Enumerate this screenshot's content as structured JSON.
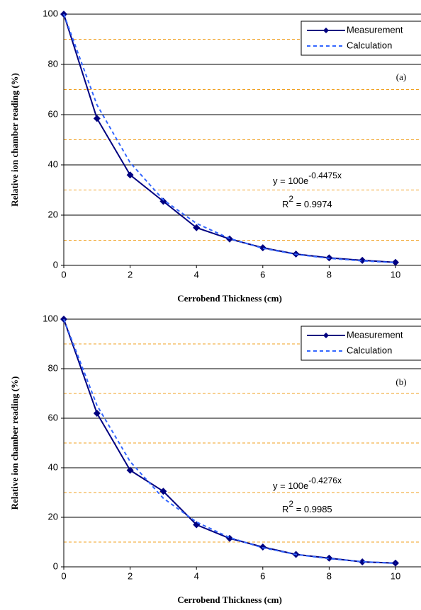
{
  "chart_data": [
    {
      "type": "line",
      "panel_label": "(a)",
      "x_label": "Cerrobend Thickness (cm)",
      "y_label": "Relative ion chamber reading (%)",
      "x": [
        0,
        1,
        2,
        3,
        4,
        5,
        6,
        7,
        8,
        9,
        10
      ],
      "series": [
        {
          "name": "Measurement",
          "color": "#000080",
          "style": "solid",
          "values": [
            100,
            58.5,
            36,
            25.5,
            15,
            10.5,
            7,
            4.5,
            3,
            2,
            1.2
          ]
        },
        {
          "name": "Calculation",
          "color": "#3366ff",
          "style": "dashed",
          "values": [
            100,
            63.9,
            40.9,
            26.1,
            16.7,
            10.7,
            6.8,
            4.4,
            2.8,
            1.8,
            1.1
          ]
        }
      ],
      "xlim": [
        0,
        10
      ],
      "ylim": [
        0,
        100
      ],
      "xticks": [
        0,
        2,
        4,
        6,
        8,
        10
      ],
      "yticks": [
        0,
        20,
        40,
        60,
        80,
        100
      ],
      "minor_yticks": [
        10,
        30,
        50,
        70,
        90
      ],
      "annotations": {
        "equation_base": "y = 100e",
        "equation_exponent": "-0.4475x",
        "r2_symbol": "R",
        "r2_superscript": "2",
        "r2_value": " = 0.9974"
      }
    },
    {
      "type": "line",
      "panel_label": "(b)",
      "x_label": "Cerrobend Thickness (cm)",
      "y_label": "Relative ion chamber reading (%)",
      "x": [
        0,
        1,
        2,
        3,
        4,
        5,
        6,
        7,
        8,
        9,
        10
      ],
      "series": [
        {
          "name": "Measurement",
          "color": "#000080",
          "style": "solid",
          "values": [
            100,
            62,
            39,
            30.5,
            17,
            11.5,
            8,
            5,
            3.5,
            2,
            1.5
          ]
        },
        {
          "name": "Calculation",
          "color": "#3366ff",
          "style": "dashed",
          "values": [
            100,
            65.2,
            42.5,
            27.7,
            18.1,
            11.8,
            7.7,
            5,
            3.3,
            2.1,
            1.4
          ]
        }
      ],
      "xlim": [
        0,
        10
      ],
      "ylim": [
        0,
        100
      ],
      "xticks": [
        0,
        2,
        4,
        6,
        8,
        10
      ],
      "yticks": [
        0,
        20,
        40,
        60,
        80,
        100
      ],
      "minor_yticks": [
        10,
        30,
        50,
        70,
        90
      ],
      "annotations": {
        "equation_base": "y = 100e",
        "equation_exponent": "-0.4276x",
        "r2_symbol": "R",
        "r2_superscript": "2",
        "r2_value": " = 0.9985"
      }
    }
  ]
}
